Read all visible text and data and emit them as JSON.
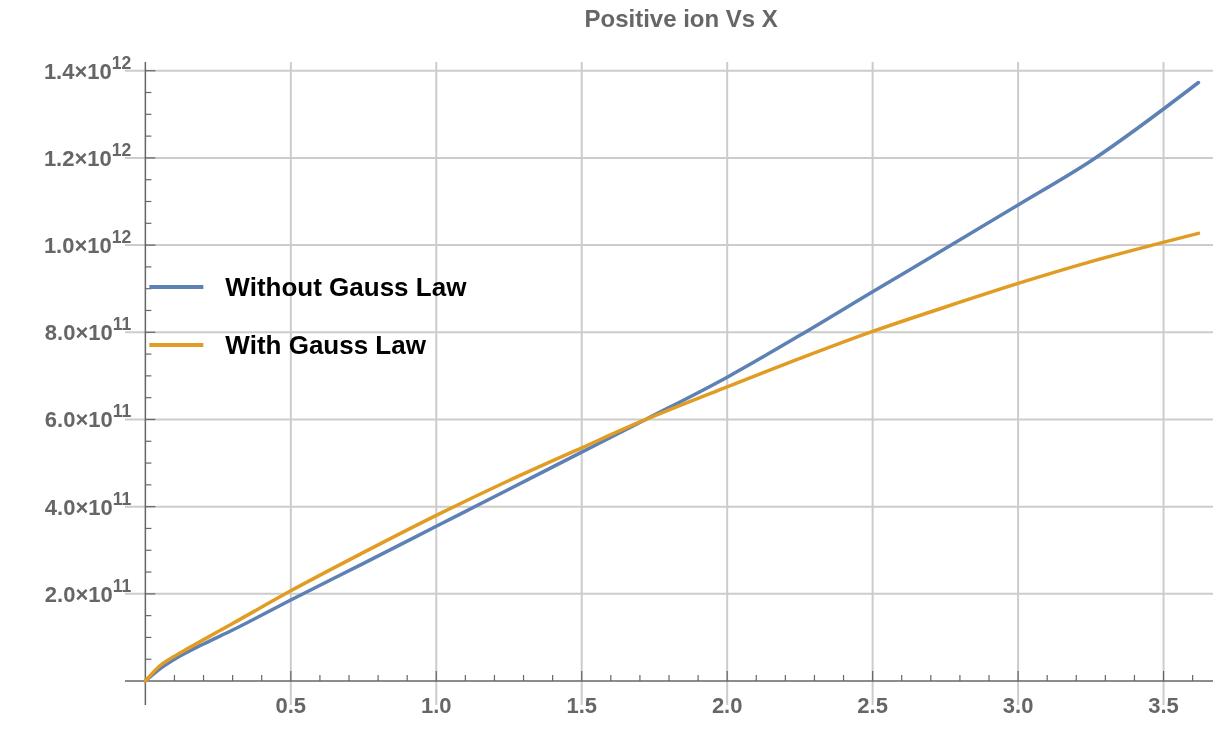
{
  "chart_data": {
    "type": "line",
    "title": "Positive ion Vs X",
    "xlim": [
      -0.07,
      3.67
    ],
    "ylim": [
      -55000000000,
      1420000000000
    ],
    "xticks": [
      {
        "value": 0.1,
        "label": null
      },
      {
        "value": 0.2,
        "label": null
      },
      {
        "value": 0.3,
        "label": null
      },
      {
        "value": 0.4,
        "label": null
      },
      {
        "value": 0.5,
        "label": "0.5"
      },
      {
        "value": 0.6,
        "label": null
      },
      {
        "value": 0.7,
        "label": null
      },
      {
        "value": 0.8,
        "label": null
      },
      {
        "value": 0.9,
        "label": null
      },
      {
        "value": 1,
        "label": "1.0"
      },
      {
        "value": 1.1,
        "label": null
      },
      {
        "value": 1.2,
        "label": null
      },
      {
        "value": 1.3,
        "label": null
      },
      {
        "value": 1.4,
        "label": null
      },
      {
        "value": 1.5,
        "label": "1.5"
      },
      {
        "value": 1.6,
        "label": null
      },
      {
        "value": 1.7,
        "label": null
      },
      {
        "value": 1.8,
        "label": null
      },
      {
        "value": 1.9,
        "label": null
      },
      {
        "value": 2,
        "label": "2.0"
      },
      {
        "value": 2.1,
        "label": null
      },
      {
        "value": 2.2,
        "label": null
      },
      {
        "value": 2.3,
        "label": null
      },
      {
        "value": 2.4,
        "label": null
      },
      {
        "value": 2.5,
        "label": "2.5"
      },
      {
        "value": 2.6,
        "label": null
      },
      {
        "value": 2.7,
        "label": null
      },
      {
        "value": 2.8,
        "label": null
      },
      {
        "value": 2.9,
        "label": null
      },
      {
        "value": 3,
        "label": "3.0"
      },
      {
        "value": 3.1,
        "label": null
      },
      {
        "value": 3.2,
        "label": null
      },
      {
        "value": 3.3,
        "label": null
      },
      {
        "value": 3.4,
        "label": null
      },
      {
        "value": 3.5,
        "label": "3.5"
      },
      {
        "value": 3.6,
        "label": null
      }
    ],
    "yticks": [
      {
        "value": 50000000000,
        "label": null
      },
      {
        "value": 100000000000,
        "label": null
      },
      {
        "value": 150000000000,
        "label": null
      },
      {
        "value": 200000000000,
        "label": "2.0×10$^{11}$"
      },
      {
        "value": 250000000000,
        "label": null
      },
      {
        "value": 300000000000,
        "label": null
      },
      {
        "value": 350000000000,
        "label": null
      },
      {
        "value": 400000000000,
        "label": "4.0×10$^{11}$"
      },
      {
        "value": 450000000000,
        "label": null
      },
      {
        "value": 500000000000,
        "label": null
      },
      {
        "value": 550000000000,
        "label": null
      },
      {
        "value": 600000000000,
        "label": "6.0×10$^{11}$"
      },
      {
        "value": 650000000000,
        "label": null
      },
      {
        "value": 700000000000,
        "label": null
      },
      {
        "value": 750000000000,
        "label": null
      },
      {
        "value": 800000000000,
        "label": "8.0×10$^{11}$"
      },
      {
        "value": 850000000000,
        "label": null
      },
      {
        "value": 900000000000,
        "label": null
      },
      {
        "value": 950000000000,
        "label": null
      },
      {
        "value": 1000000000000,
        "label": "1.0×10$^{12}$"
      },
      {
        "value": 1050000000000,
        "label": null
      },
      {
        "value": 1100000000000,
        "label": null
      },
      {
        "value": 1150000000000,
        "label": null
      },
      {
        "value": 1200000000000,
        "label": "1.2×10$^{12}$"
      },
      {
        "value": 1250000000000,
        "label": null
      },
      {
        "value": 1300000000000,
        "label": null
      },
      {
        "value": 1350000000000,
        "label": null
      },
      {
        "value": 1400000000000,
        "label": "1.4×10$^{12}$"
      }
    ],
    "grid": true,
    "legend": "left",
    "series": [
      {
        "name": "Without Gauss Law",
        "color": "#5e81b5",
        "x": [
          0,
          0.05,
          0.1,
          0.2,
          0.3,
          0.5,
          0.75,
          1,
          1.25,
          1.5,
          1.72,
          2,
          2.25,
          2.5,
          2.75,
          3,
          3.25,
          3.62
        ],
        "values": [
          0,
          28000000000,
          50000000000,
          85000000000,
          117000000000,
          186000000000,
          270000000000,
          355000000000,
          440000000000,
          525000000000,
          600000000000,
          697000000000,
          793000000000,
          893000000000,
          992000000000,
          1092000000000,
          1193000000000,
          1373000000000
        ]
      },
      {
        "name": "With Gauss Law",
        "color": "#e19c24",
        "x": [
          0,
          0.05,
          0.1,
          0.15,
          0.3,
          0.5,
          0.75,
          1,
          1.25,
          1.5,
          1.72,
          2,
          2.25,
          2.5,
          2.75,
          3,
          3.25,
          3.62
        ],
        "values": [
          0,
          35000000000,
          57000000000,
          76000000000,
          132000000000,
          207000000000,
          295000000000,
          380000000000,
          460000000000,
          535000000000,
          600000000000,
          675000000000,
          740000000000,
          802000000000,
          858000000000,
          912000000000,
          962000000000,
          1027000000000
        ]
      }
    ]
  }
}
